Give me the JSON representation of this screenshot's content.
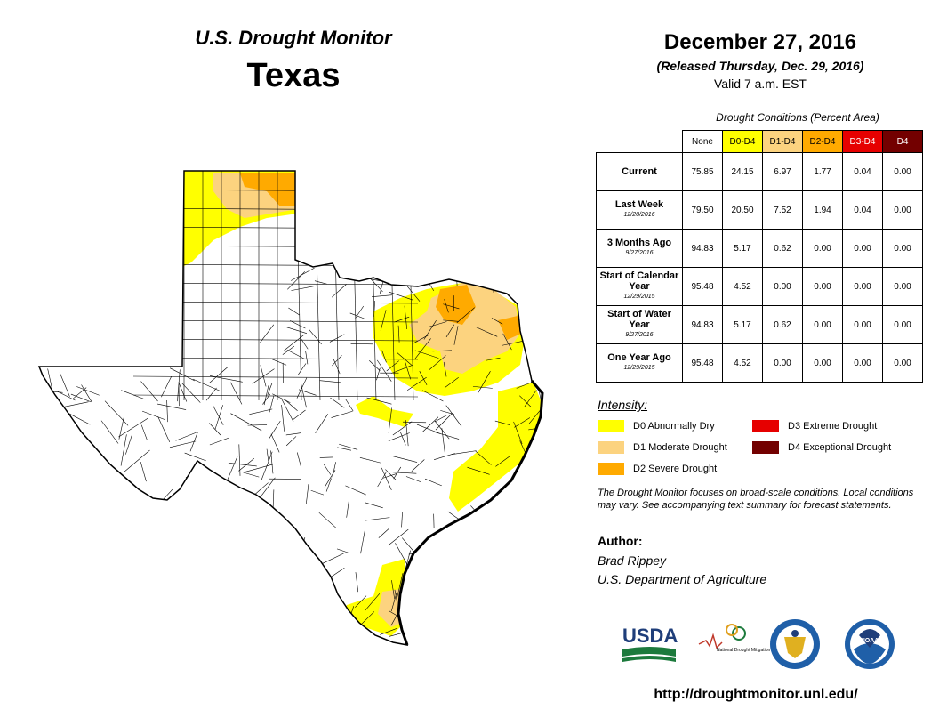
{
  "header": {
    "brand": "U.S. Drought Monitor",
    "state": "Texas",
    "map_date": "December 27, 2016",
    "released": "(Released Thursday, Dec. 29, 2016)",
    "valid": "Valid 7 a.m. EST"
  },
  "table": {
    "caption": "Drought Conditions (Percent Area)",
    "columns": [
      {
        "label": "None",
        "color": "#ffffff",
        "text_color": "#000000"
      },
      {
        "label": "D0-D4",
        "color": "#ffff00",
        "text_color": "#000000"
      },
      {
        "label": "D1-D4",
        "color": "#fcd37f",
        "text_color": "#000000"
      },
      {
        "label": "D2-D4",
        "color": "#ffaa00",
        "text_color": "#000000"
      },
      {
        "label": "D3-D4",
        "color": "#e60000",
        "text_color": "#ffffff"
      },
      {
        "label": "D4",
        "color": "#730000",
        "text_color": "#ffffff"
      }
    ],
    "rows": [
      {
        "label": "Current",
        "date": "",
        "values": [
          "75.85",
          "24.15",
          "6.97",
          "1.77",
          "0.04",
          "0.00"
        ]
      },
      {
        "label": "Last Week",
        "date": "12/20/2016",
        "values": [
          "79.50",
          "20.50",
          "7.52",
          "1.94",
          "0.04",
          "0.00"
        ]
      },
      {
        "label": "3 Months Ago",
        "date": "9/27/2016",
        "values": [
          "94.83",
          "5.17",
          "0.62",
          "0.00",
          "0.00",
          "0.00"
        ]
      },
      {
        "label": "Start of Calendar Year",
        "date": "12/29/2015",
        "values": [
          "95.48",
          "4.52",
          "0.00",
          "0.00",
          "0.00",
          "0.00"
        ]
      },
      {
        "label": "Start of Water Year",
        "date": "9/27/2016",
        "values": [
          "94.83",
          "5.17",
          "0.62",
          "0.00",
          "0.00",
          "0.00"
        ]
      },
      {
        "label": "One Year Ago",
        "date": "12/29/2015",
        "values": [
          "95.48",
          "4.52",
          "0.00",
          "0.00",
          "0.00",
          "0.00"
        ]
      }
    ]
  },
  "legend": {
    "title": "Intensity:",
    "items": [
      {
        "label": "D0 Abnormally Dry",
        "color": "#ffff00"
      },
      {
        "label": "D1 Moderate Drought",
        "color": "#fcd37f"
      },
      {
        "label": "D2 Severe Drought",
        "color": "#ffaa00"
      },
      {
        "label": "D3 Extreme Drought",
        "color": "#e60000"
      },
      {
        "label": "D4 Exceptional Drought",
        "color": "#730000"
      }
    ]
  },
  "note": "The Drought Monitor focuses on broad-scale conditions. Local conditions may vary. See accompanying text summary for forecast statements.",
  "author": {
    "heading": "Author:",
    "name": "Brad Rippey",
    "org": "U.S. Department of Agriculture"
  },
  "logos": {
    "usda": "USDA",
    "ndmc": "National Drought Mitigation Center",
    "noaa": "NOAA"
  },
  "url": "http://droughtmonitor.unl.edu/"
}
